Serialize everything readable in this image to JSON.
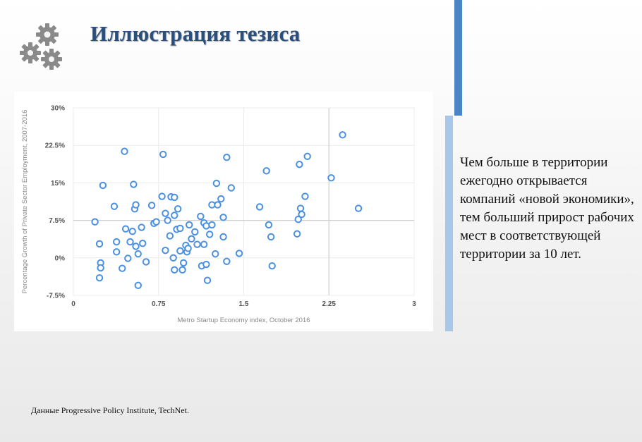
{
  "slide": {
    "title": "Иллюстрация тезиса",
    "icon": "gears-icon",
    "thesis": "Чем больше в территории ежегодно открывается компаний «новой экономики», тем больший прирост рабочих мест в соответствующей территории за 10 лет.",
    "source": "Данные Progressive Policy Institute, TechNet.",
    "colors": {
      "title": "#2b4f7c",
      "accent_dark": "#4a86c3",
      "accent_light": "#a7c8e8",
      "marker": "#4a90e2"
    }
  },
  "chart_data": {
    "type": "scatter",
    "xlabel": "Metro Startup Economy index, October 2016",
    "ylabel": "Percentage Growth of Private Sector Employment, 2007-2016",
    "xlim": [
      0,
      3
    ],
    "ylim": [
      -7.5,
      30
    ],
    "x_ticks": [
      0,
      0.75,
      1.5,
      2.25,
      3
    ],
    "x_tick_labels": [
      "0",
      "0.75",
      "1.5",
      "2.25",
      "3"
    ],
    "y_ticks": [
      -7.5,
      0,
      7.5,
      15,
      22.5,
      30
    ],
    "y_tick_labels": [
      "-7.5%",
      "0%",
      "7.5%",
      "15%",
      "22.5%",
      "30%"
    ],
    "grid": true,
    "reference_lines": {
      "x": 2.25,
      "y": 7.5
    },
    "marker": "hollow-circle",
    "points": [
      [
        0.19,
        7.2
      ],
      [
        0.23,
        2.8
      ],
      [
        0.24,
        -1.0
      ],
      [
        0.24,
        -2.0
      ],
      [
        0.23,
        -4.0
      ],
      [
        0.26,
        14.5
      ],
      [
        0.36,
        10.3
      ],
      [
        0.38,
        3.2
      ],
      [
        0.38,
        1.2
      ],
      [
        0.43,
        -2.1
      ],
      [
        0.45,
        21.3
      ],
      [
        0.46,
        5.8
      ],
      [
        0.48,
        -0.1
      ],
      [
        0.5,
        3.2
      ],
      [
        0.52,
        5.3
      ],
      [
        0.53,
        14.7
      ],
      [
        0.54,
        9.8
      ],
      [
        0.55,
        10.6
      ],
      [
        0.55,
        2.3
      ],
      [
        0.57,
        0.8
      ],
      [
        0.57,
        -5.5
      ],
      [
        0.6,
        6.1
      ],
      [
        0.61,
        2.9
      ],
      [
        0.64,
        -0.8
      ],
      [
        0.69,
        10.5
      ],
      [
        0.71,
        6.9
      ],
      [
        0.73,
        7.2
      ],
      [
        0.78,
        12.3
      ],
      [
        0.79,
        20.7
      ],
      [
        0.81,
        8.9
      ],
      [
        0.81,
        1.5
      ],
      [
        0.83,
        7.5
      ],
      [
        0.85,
        4.4
      ],
      [
        0.86,
        12.2
      ],
      [
        0.89,
        12.1
      ],
      [
        0.89,
        8.5
      ],
      [
        0.88,
        0.0
      ],
      [
        0.89,
        -2.4
      ],
      [
        0.91,
        5.7
      ],
      [
        0.92,
        9.8
      ],
      [
        0.94,
        5.9
      ],
      [
        0.94,
        1.4
      ],
      [
        0.96,
        -2.4
      ],
      [
        0.97,
        -1.0
      ],
      [
        0.99,
        2.5
      ],
      [
        1.0,
        1.2
      ],
      [
        1.01,
        1.9
      ],
      [
        1.02,
        6.6
      ],
      [
        1.04,
        3.8
      ],
      [
        1.07,
        5.2
      ],
      [
        1.09,
        2.7
      ],
      [
        1.12,
        8.3
      ],
      [
        1.13,
        -1.6
      ],
      [
        1.15,
        2.7
      ],
      [
        1.15,
        7.0
      ],
      [
        1.17,
        6.4
      ],
      [
        1.17,
        -1.3
      ],
      [
        1.18,
        -4.5
      ],
      [
        1.2,
        4.7
      ],
      [
        1.22,
        6.6
      ],
      [
        1.22,
        10.6
      ],
      [
        1.25,
        0.8
      ],
      [
        1.26,
        14.9
      ],
      [
        1.27,
        10.6
      ],
      [
        1.3,
        11.8
      ],
      [
        1.32,
        8.1
      ],
      [
        1.32,
        4.2
      ],
      [
        1.35,
        -0.7
      ],
      [
        1.35,
        20.1
      ],
      [
        1.39,
        14.0
      ],
      [
        1.46,
        0.9
      ],
      [
        1.64,
        10.2
      ],
      [
        1.7,
        17.4
      ],
      [
        1.72,
        6.6
      ],
      [
        1.74,
        4.2
      ],
      [
        1.75,
        -1.6
      ],
      [
        1.97,
        4.8
      ],
      [
        1.98,
        7.7
      ],
      [
        1.99,
        18.7
      ],
      [
        2.0,
        9.9
      ],
      [
        2.01,
        8.7
      ],
      [
        2.04,
        12.3
      ],
      [
        2.06,
        20.3
      ],
      [
        2.27,
        16.0
      ],
      [
        2.37,
        24.6
      ],
      [
        2.51,
        9.9
      ]
    ]
  }
}
